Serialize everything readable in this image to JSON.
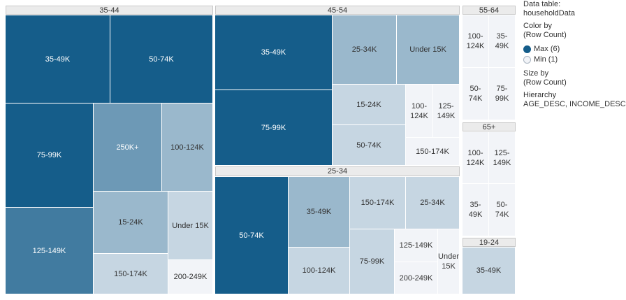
{
  "legend": {
    "data_table_label": "Data table:",
    "data_table_value": "householdData",
    "color_by_label": "Color by",
    "color_by_value": "(Row Count)",
    "max_label": "Max (6)",
    "min_label": "Min (1)",
    "size_by_label": "Size by",
    "size_by_value": "(Row Count)",
    "hierarchy_label": "Hierarchy",
    "hierarchy_value": "AGE_DESC, INCOME_DESC",
    "max_color": "#155d8a",
    "min_color": "#f2f4f8"
  },
  "chart_data": {
    "type": "treemap",
    "size_by": "Row Count",
    "color_by": "Row Count",
    "color_range": [
      1,
      6
    ],
    "hierarchy": [
      "AGE_DESC",
      "INCOME_DESC"
    ],
    "groups": [
      {
        "name": "35-44",
        "children": [
          {
            "name": "35-49K",
            "value": 6
          },
          {
            "name": "50-74K",
            "value": 6
          },
          {
            "name": "75-99K",
            "value": 6
          },
          {
            "name": "250K+",
            "value": 4
          },
          {
            "name": "100-124K",
            "value": 3
          },
          {
            "name": "125-149K",
            "value": 5
          },
          {
            "name": "15-24K",
            "value": 3
          },
          {
            "name": "Under 15K",
            "value": 2
          },
          {
            "name": "150-174K",
            "value": 2
          },
          {
            "name": "200-249K",
            "value": 1
          }
        ]
      },
      {
        "name": "45-54",
        "children": [
          {
            "name": "35-49K",
            "value": 6
          },
          {
            "name": "25-34K",
            "value": 3
          },
          {
            "name": "Under 15K",
            "value": 3
          },
          {
            "name": "75-99K",
            "value": 6
          },
          {
            "name": "15-24K",
            "value": 2
          },
          {
            "name": "100-124K",
            "value": 1
          },
          {
            "name": "125-149K",
            "value": 1
          },
          {
            "name": "50-74K",
            "value": 2
          },
          {
            "name": "150-174K",
            "value": 1
          }
        ]
      },
      {
        "name": "25-34",
        "children": [
          {
            "name": "50-74K",
            "value": 6
          },
          {
            "name": "35-49K",
            "value": 3
          },
          {
            "name": "150-174K",
            "value": 2
          },
          {
            "name": "25-34K",
            "value": 2
          },
          {
            "name": "100-124K",
            "value": 2
          },
          {
            "name": "75-99K",
            "value": 2
          },
          {
            "name": "125-149K",
            "value": 1
          },
          {
            "name": "200-249K",
            "value": 1
          },
          {
            "name": "Under 15K",
            "value": 1
          }
        ]
      },
      {
        "name": "55-64",
        "children": [
          {
            "name": "100-124K",
            "value": 1
          },
          {
            "name": "35-49K",
            "value": 1
          },
          {
            "name": "50-74K",
            "value": 1
          },
          {
            "name": "75-99K",
            "value": 1
          }
        ]
      },
      {
        "name": "65+",
        "children": [
          {
            "name": "100-124K",
            "value": 1
          },
          {
            "name": "125-149K",
            "value": 1
          },
          {
            "name": "35-49K",
            "value": 1
          },
          {
            "name": "50-74K",
            "value": 1
          }
        ]
      },
      {
        "name": "19-24",
        "children": [
          {
            "name": "35-49K",
            "value": 2
          }
        ]
      }
    ]
  }
}
